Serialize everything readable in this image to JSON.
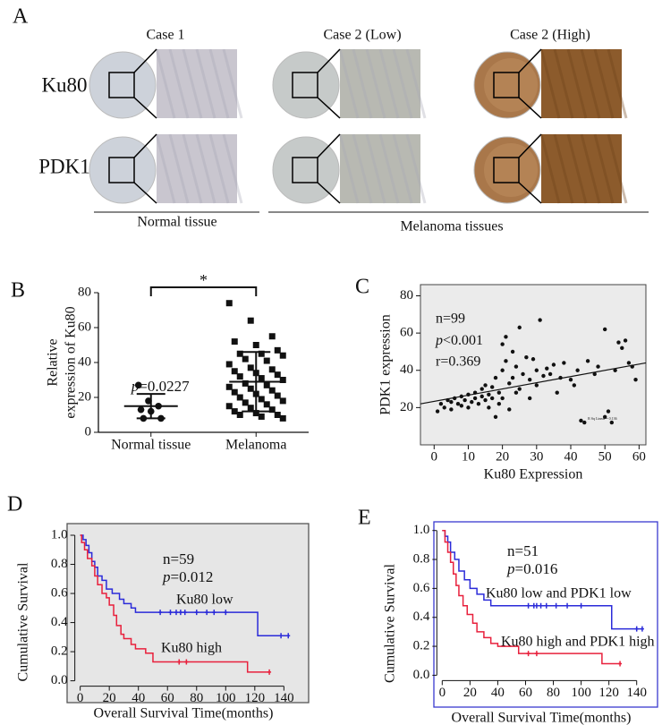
{
  "panel_a": {
    "label": "A",
    "columns": [
      "Case 1",
      "Case 2 (Low)",
      "Case 2 (High)"
    ],
    "rows": [
      "Ku80",
      "PDK1"
    ],
    "groups": [
      "Normal tissue",
      "Melanoma tissues"
    ]
  },
  "chart_data": [
    {
      "type": "dot-plot",
      "panel": "B",
      "ylabel": [
        "Relative",
        "expression of Ku80"
      ],
      "categories": [
        "Normal tissue",
        "Melanoma"
      ],
      "markers": [
        "circle",
        "square"
      ],
      "values": [
        [
          27,
          18,
          15,
          13,
          12,
          8,
          8
        ],
        [
          74,
          64,
          55,
          52,
          50,
          47,
          45,
          45,
          44,
          42,
          41,
          39,
          37,
          36,
          35,
          34,
          33,
          32,
          31,
          30,
          28,
          27,
          26,
          25,
          24,
          23,
          22,
          21,
          20,
          19,
          18,
          17,
          16,
          15,
          14,
          13,
          12,
          11,
          10,
          10,
          9,
          8
        ]
      ],
      "means": [
        15,
        29
      ],
      "sd": [
        7,
        17
      ],
      "significance": "*",
      "stats": [
        {
          "italic": "p",
          "text": "=0.0227"
        }
      ],
      "ylim": [
        0,
        80
      ],
      "yticks": [
        0,
        20,
        40,
        60,
        80
      ],
      "color": "#111111"
    },
    {
      "type": "scatter",
      "panel": "C",
      "xlabel": "Ku80 Expression",
      "ylabel": "PDK1 expression",
      "x": [
        1,
        2,
        3,
        4,
        5,
        5,
        6,
        7,
        8,
        8,
        9,
        10,
        10,
        11,
        12,
        12,
        13,
        14,
        14,
        15,
        15,
        16,
        16,
        17,
        17,
        18,
        18,
        19,
        19,
        20,
        20,
        20,
        21,
        21,
        22,
        22,
        23,
        23,
        24,
        24,
        25,
        25,
        26,
        27,
        28,
        28,
        29,
        30,
        30,
        31,
        32,
        33,
        34,
        35,
        36,
        37,
        38,
        40,
        41,
        42,
        43,
        44,
        45,
        47,
        48,
        50,
        50,
        51,
        52,
        53,
        54,
        55,
        56,
        57,
        58,
        59
      ],
      "y": [
        18,
        22,
        20,
        24,
        23,
        19,
        25,
        22,
        26,
        21,
        24,
        27,
        20,
        23,
        25,
        28,
        22,
        26,
        30,
        24,
        32,
        27,
        20,
        31,
        25,
        15,
        36,
        28,
        22,
        54,
        40,
        25,
        58,
        45,
        33,
        19,
        50,
        36,
        42,
        28,
        63,
        30,
        38,
        47,
        35,
        25,
        46,
        40,
        32,
        67,
        37,
        41,
        38,
        43,
        28,
        36,
        44,
        35,
        32,
        40,
        13,
        12,
        45,
        38,
        42,
        62,
        15,
        18,
        12,
        40,
        55,
        52,
        56,
        44,
        42,
        35
      ],
      "fit": {
        "x": [
          -4,
          62
        ],
        "y": [
          22,
          44
        ]
      },
      "fit_label": "R Sq Linear = 0.136",
      "stats": [
        "n=99",
        {
          "italic": "p",
          "text": "<0.001"
        },
        "r=0.369"
      ],
      "xlim": [
        -4,
        62
      ],
      "ylim": [
        0,
        86
      ],
      "xticks": [
        0,
        10,
        20,
        30,
        40,
        50,
        60
      ],
      "yticks": [
        20,
        40,
        60,
        80
      ],
      "background": "#ebebeb",
      "color": "#111111"
    },
    {
      "type": "survival",
      "panel": "D",
      "xlabel": "Overall Survival Time(months)",
      "ylabel": "Cumulative Survival",
      "stats": [
        "n=59",
        {
          "italic": "p",
          "text": "=0.012"
        }
      ],
      "series": [
        {
          "name": "Ku80 low",
          "color": "#2b2bd9",
          "x": [
            0,
            2,
            4,
            6,
            8,
            10,
            12,
            15,
            18,
            22,
            27,
            30,
            35,
            38,
            122,
            144
          ],
          "values": [
            1,
            0.97,
            0.93,
            0.88,
            0.82,
            0.78,
            0.72,
            0.69,
            0.63,
            0.6,
            0.56,
            0.53,
            0.5,
            0.47,
            0.31,
            0.31
          ],
          "censor_x": [
            55,
            62,
            66,
            69,
            72,
            80,
            87,
            92,
            100,
            138,
            143
          ],
          "censor_y": [
            0.47,
            0.47,
            0.47,
            0.47,
            0.47,
            0.47,
            0.47,
            0.47,
            0.47,
            0.31,
            0.31
          ]
        },
        {
          "name": "Ku80 high",
          "color": "#e8203c",
          "x": [
            0,
            1,
            3,
            5,
            8,
            10,
            12,
            15,
            18,
            20,
            23,
            25,
            28,
            30,
            35,
            38,
            45,
            50,
            115,
            130
          ],
          "values": [
            1,
            0.95,
            0.9,
            0.84,
            0.79,
            0.72,
            0.66,
            0.6,
            0.57,
            0.52,
            0.45,
            0.38,
            0.32,
            0.29,
            0.25,
            0.22,
            0.19,
            0.13,
            0.06,
            0.06
          ],
          "censor_x": [
            68,
            73,
            130
          ],
          "censor_y": [
            0.13,
            0.13,
            0.06
          ]
        }
      ],
      "xlim": [
        -9,
        157
      ],
      "ylim": [
        -0.15,
        1.08
      ],
      "xticks": [
        0,
        20,
        40,
        60,
        80,
        100,
        120,
        140
      ],
      "yticks": [
        {
          "value": 0,
          "label": "0.0"
        },
        0.2,
        0.4,
        0.6,
        0.8,
        {
          "value": 1,
          "label": "1.0"
        }
      ],
      "background": "#e6e6e6",
      "border": "#555555"
    },
    {
      "type": "survival",
      "panel": "E",
      "xlabel": "Overall Survival Time(months)",
      "ylabel": "Cumulative Survival",
      "stats": [
        "n=51",
        {
          "italic": "p",
          "text": "=0.016"
        }
      ],
      "series": [
        {
          "name": "Ku80 low and PDK1 low",
          "color": "#2b2bd9",
          "x": [
            0,
            2,
            4,
            6,
            9,
            12,
            16,
            20,
            25,
            30,
            35,
            122,
            144
          ],
          "values": [
            1,
            0.96,
            0.92,
            0.85,
            0.8,
            0.72,
            0.66,
            0.6,
            0.56,
            0.52,
            0.48,
            0.32,
            0.32
          ],
          "censor_x": [
            62,
            66,
            68,
            71,
            75,
            82,
            90,
            100,
            140,
            144
          ],
          "censor_y": [
            0.48,
            0.48,
            0.48,
            0.48,
            0.48,
            0.48,
            0.48,
            0.48,
            0.32,
            0.32
          ]
        },
        {
          "name": "Ku80 high and PDK1 high",
          "color": "#e8203c",
          "x": [
            0,
            2,
            4,
            6,
            8,
            10,
            12,
            15,
            18,
            22,
            25,
            30,
            35,
            40,
            55,
            115,
            128
          ],
          "values": [
            1,
            0.92,
            0.85,
            0.78,
            0.7,
            0.62,
            0.55,
            0.48,
            0.42,
            0.36,
            0.3,
            0.26,
            0.22,
            0.2,
            0.15,
            0.08,
            0.08
          ],
          "censor_x": [
            62,
            68,
            128
          ],
          "censor_y": [
            0.15,
            0.15,
            0.08
          ]
        }
      ],
      "xlim": [
        -6,
        155
      ],
      "ylim": [
        -0.22,
        1.06
      ],
      "xticks": [
        0,
        20,
        40,
        60,
        80,
        100,
        120,
        140
      ],
      "yticks": [
        {
          "value": 0,
          "label": "0.0"
        },
        0.2,
        0.4,
        0.6,
        0.8,
        {
          "value": 1,
          "label": "1.0"
        }
      ],
      "background": "#ffffff",
      "border": "#3a3ad0"
    }
  ]
}
